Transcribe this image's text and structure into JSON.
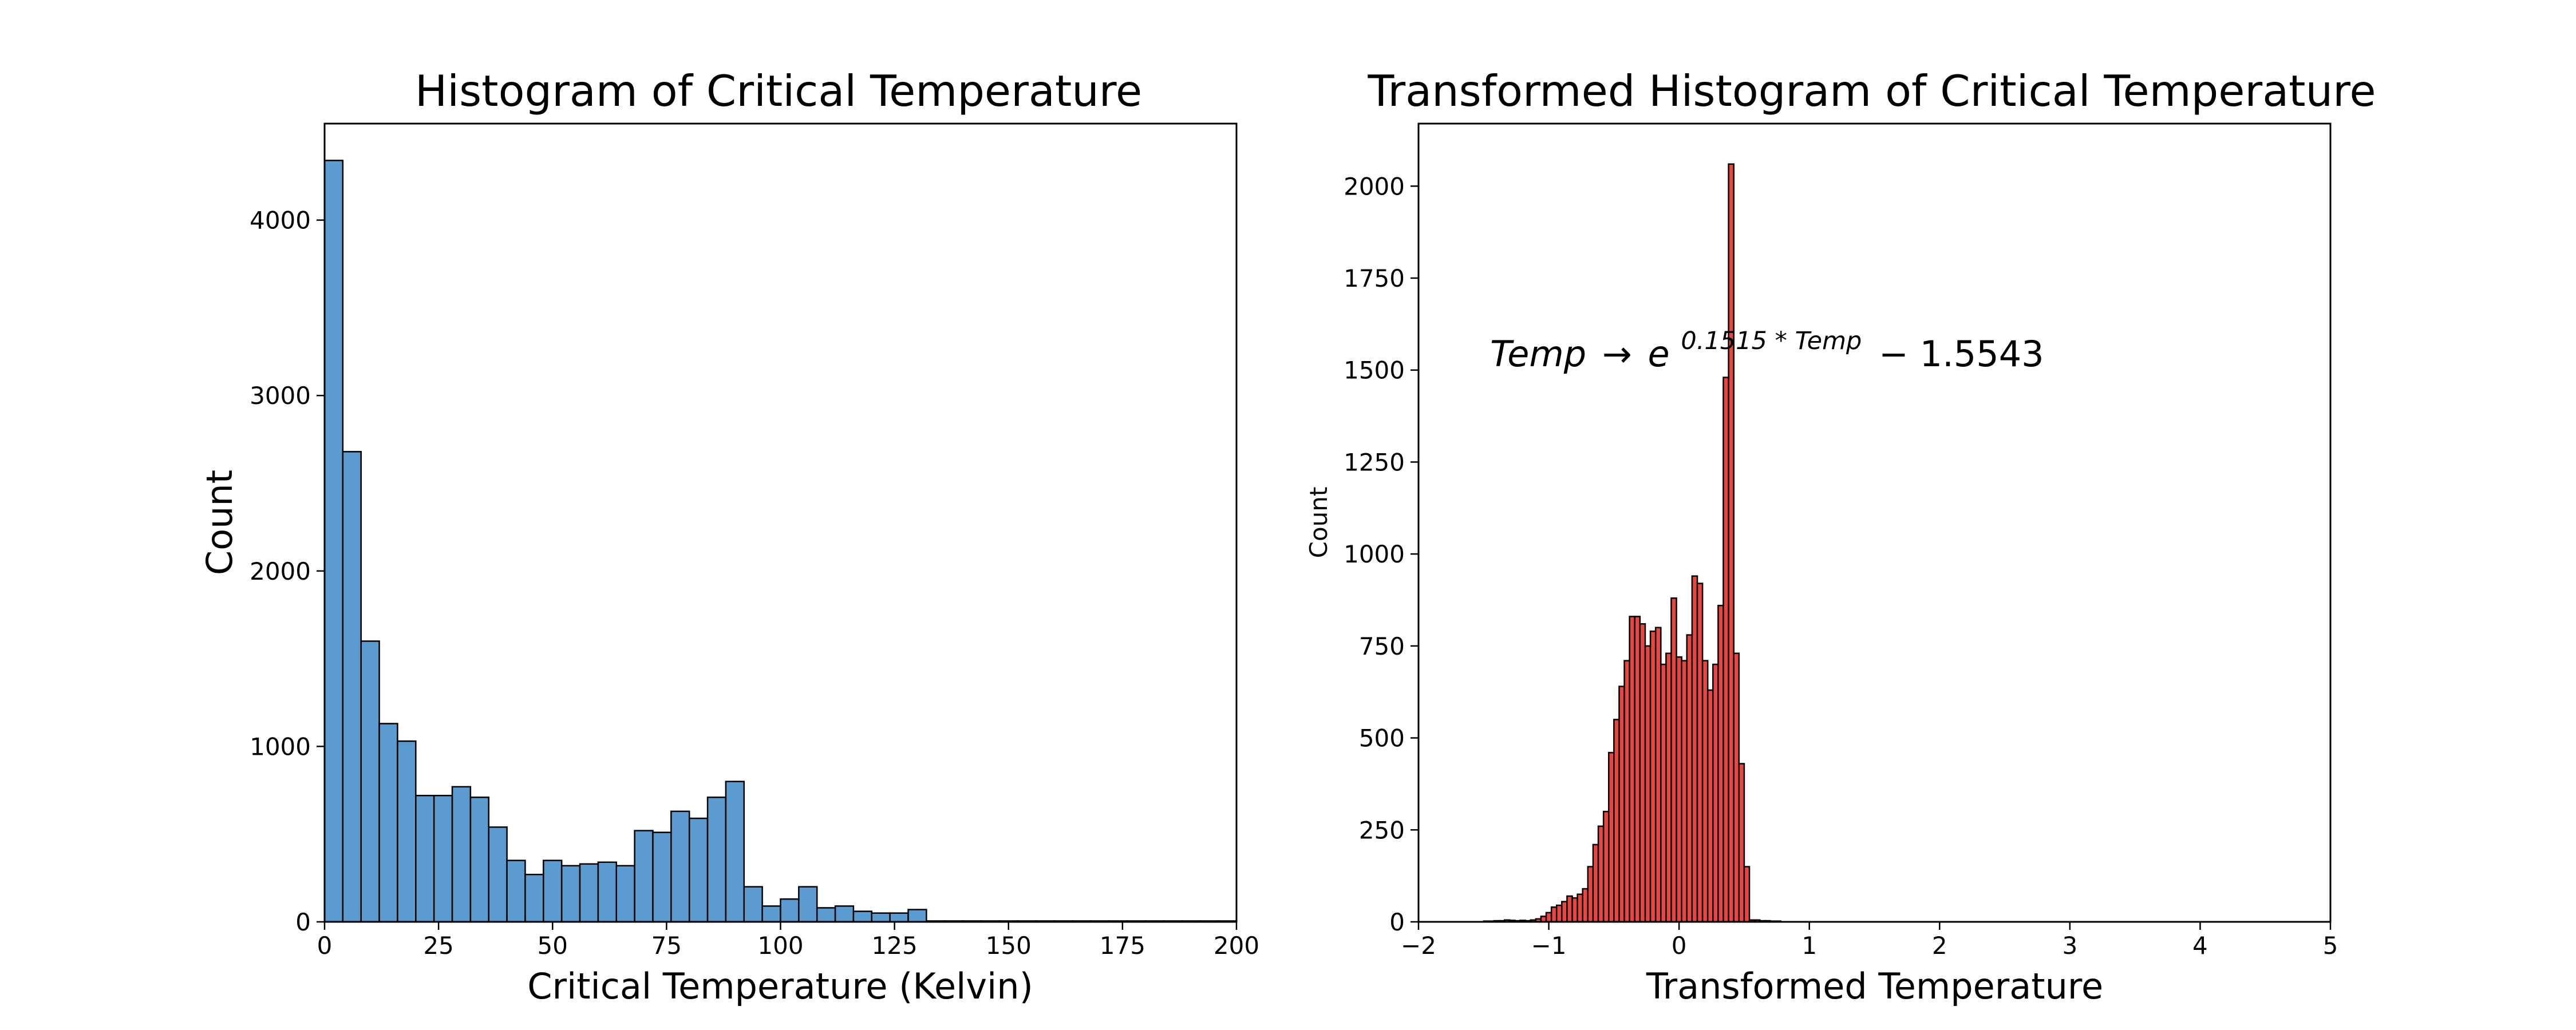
{
  "chart_data": [
    {
      "type": "bar",
      "title": "Histogram of Critical Temperature",
      "xlabel": "Critical Temperature (Kelvin)",
      "ylabel": "Count",
      "xlim": [
        0,
        200
      ],
      "ylim": [
        0,
        4550
      ],
      "xticks": [
        "0",
        "25",
        "50",
        "75",
        "100",
        "125",
        "150",
        "175",
        "200"
      ],
      "xtick_values": [
        0,
        25,
        50,
        75,
        100,
        125,
        150,
        175,
        200
      ],
      "yticks": [
        "0",
        "1000",
        "2000",
        "3000",
        "4000"
      ],
      "ytick_values": [
        0,
        1000,
        2000,
        3000,
        4000
      ],
      "bin_width": 4,
      "bin_start": 0,
      "values": [
        4340,
        2680,
        1600,
        1130,
        1030,
        720,
        720,
        770,
        710,
        540,
        350,
        270,
        350,
        320,
        330,
        340,
        320,
        520,
        510,
        630,
        590,
        710,
        800,
        200,
        90,
        130,
        200,
        80,
        90,
        60,
        50,
        50,
        70,
        5,
        5,
        5,
        5,
        5,
        5,
        5,
        5,
        5,
        5,
        5,
        5,
        5,
        5,
        5,
        5,
        5
      ],
      "bar_color": "#5b9bd0",
      "grid": false
    },
    {
      "type": "bar",
      "title": "Transformed Histogram of Critical Temperature",
      "xlabel": "Transformed Temperature",
      "ylabel": "Count",
      "xlim": [
        -2,
        5
      ],
      "ylim": [
        0,
        2170
      ],
      "xticks": [
        "−2",
        "−1",
        "0",
        "1",
        "2",
        "3",
        "4",
        "5"
      ],
      "xtick_values": [
        -2,
        -1,
        0,
        1,
        2,
        3,
        4,
        5
      ],
      "yticks": [
        "0",
        "250",
        "500",
        "750",
        "1000",
        "1250",
        "1500",
        "1750",
        "2000"
      ],
      "ytick_values": [
        0,
        250,
        500,
        750,
        1000,
        1250,
        1500,
        1750,
        2000
      ],
      "bin_width": 0.04,
      "bin_start": -1.5,
      "values": [
        2,
        2,
        3,
        3,
        5,
        4,
        3,
        4,
        3,
        5,
        8,
        15,
        25,
        40,
        45,
        55,
        70,
        65,
        75,
        90,
        150,
        210,
        260,
        300,
        460,
        550,
        640,
        710,
        830,
        830,
        810,
        750,
        790,
        800,
        700,
        730,
        880,
        720,
        710,
        780,
        940,
        920,
        710,
        630,
        700,
        860,
        1480,
        2060,
        730,
        430,
        150,
        5,
        5,
        3,
        3,
        2,
        2
      ],
      "bar_color": "#e8473f",
      "grid": false,
      "annotation": {
        "base": "Temp",
        "arrow": "→",
        "exp_base": "e",
        "exponent": "0.1515 * Temp",
        "tail": "− 1.5543"
      }
    }
  ]
}
